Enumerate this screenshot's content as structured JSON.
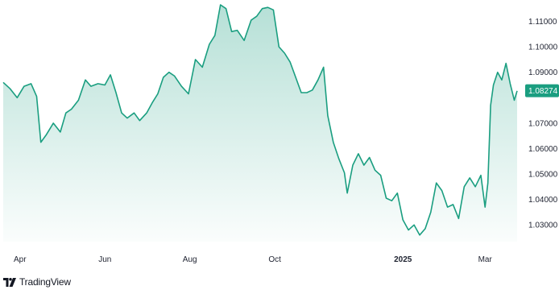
{
  "chart_data": {
    "type": "area",
    "title": "",
    "xlabel": "",
    "ylabel": "",
    "x_ticks": [
      {
        "label": "Apr",
        "date": "2024-04-01",
        "bold": false
      },
      {
        "label": "Jun",
        "date": "2024-06-01",
        "bold": false
      },
      {
        "label": "Aug",
        "date": "2024-08-01",
        "bold": false
      },
      {
        "label": "Oct",
        "date": "2024-10-01",
        "bold": false
      },
      {
        "label": "2025",
        "date": "2025-01-01",
        "bold": true
      },
      {
        "label": "Mar",
        "date": "2025-03-01",
        "bold": false
      }
    ],
    "y_ticks": [
      {
        "label": "1.11000",
        "value": 1.11
      },
      {
        "label": "1.10000",
        "value": 1.1
      },
      {
        "label": "1.09000",
        "value": 1.09
      },
      {
        "label": "1.07000",
        "value": 1.07
      },
      {
        "label": "1.06000",
        "value": 1.06
      },
      {
        "label": "1.05000",
        "value": 1.05
      },
      {
        "label": "1.04000",
        "value": 1.04
      },
      {
        "label": "1.03000",
        "value": 1.03
      }
    ],
    "ylim": [
      1.025,
      1.1165
    ],
    "xlim": [
      "2024-03-20",
      "2025-03-24"
    ],
    "last_price": {
      "label": "1.08274",
      "value": 1.08274
    },
    "line_color": "#1a9e80",
    "fill_top_color": "#1a9e80",
    "price_label_color": "#1a9e80",
    "series": [
      {
        "values": [
          [
            "2024-03-20",
            1.086
          ],
          [
            "2024-03-25",
            1.0835
          ],
          [
            "2024-03-30",
            1.08
          ],
          [
            "2024-04-04",
            1.0845
          ],
          [
            "2024-04-09",
            1.0855
          ],
          [
            "2024-04-13",
            1.0805
          ],
          [
            "2024-04-16",
            1.0625
          ],
          [
            "2024-04-20",
            1.0655
          ],
          [
            "2024-04-25",
            1.07
          ],
          [
            "2024-04-30",
            1.0665
          ],
          [
            "2024-05-04",
            1.074
          ],
          [
            "2024-05-08",
            1.0755
          ],
          [
            "2024-05-13",
            1.079
          ],
          [
            "2024-05-18",
            1.087
          ],
          [
            "2024-05-22",
            1.0845
          ],
          [
            "2024-05-27",
            1.0855
          ],
          [
            "2024-06-01",
            1.085
          ],
          [
            "2024-06-05",
            1.089
          ],
          [
            "2024-06-09",
            1.082
          ],
          [
            "2024-06-13",
            1.074
          ],
          [
            "2024-06-17",
            1.072
          ],
          [
            "2024-06-22",
            1.074
          ],
          [
            "2024-06-26",
            1.071
          ],
          [
            "2024-07-01",
            1.074
          ],
          [
            "2024-07-05",
            1.078
          ],
          [
            "2024-07-09",
            1.0815
          ],
          [
            "2024-07-13",
            1.088
          ],
          [
            "2024-07-17",
            1.09
          ],
          [
            "2024-07-21",
            1.0885
          ],
          [
            "2024-07-26",
            1.0845
          ],
          [
            "2024-07-31",
            1.0815
          ],
          [
            "2024-08-05",
            1.095
          ],
          [
            "2024-08-10",
            1.092
          ],
          [
            "2024-08-15",
            1.101
          ],
          [
            "2024-08-19",
            1.1045
          ],
          [
            "2024-08-23",
            1.1165
          ],
          [
            "2024-08-27",
            1.115
          ],
          [
            "2024-08-31",
            1.106
          ],
          [
            "2024-09-04",
            1.1065
          ],
          [
            "2024-09-09",
            1.1025
          ],
          [
            "2024-09-14",
            1.1105
          ],
          [
            "2024-09-18",
            1.112
          ],
          [
            "2024-09-22",
            1.115
          ],
          [
            "2024-09-26",
            1.1155
          ],
          [
            "2024-09-30",
            1.1145
          ],
          [
            "2024-10-04",
            1.1
          ],
          [
            "2024-10-08",
            1.0975
          ],
          [
            "2024-10-12",
            1.094
          ],
          [
            "2024-10-16",
            1.088
          ],
          [
            "2024-10-20",
            1.082
          ],
          [
            "2024-10-24",
            1.082
          ],
          [
            "2024-10-28",
            1.083
          ],
          [
            "2024-11-01",
            1.087
          ],
          [
            "2024-11-05",
            1.092
          ],
          [
            "2024-11-08",
            1.073
          ],
          [
            "2024-11-12",
            1.0625
          ],
          [
            "2024-11-16",
            1.056
          ],
          [
            "2024-11-20",
            1.0505
          ],
          [
            "2024-11-22",
            1.0425
          ],
          [
            "2024-11-26",
            1.0535
          ],
          [
            "2024-11-30",
            1.058
          ],
          [
            "2024-12-04",
            1.0535
          ],
          [
            "2024-12-08",
            1.0565
          ],
          [
            "2024-12-12",
            1.0515
          ],
          [
            "2024-12-16",
            1.0495
          ],
          [
            "2024-12-20",
            1.0405
          ],
          [
            "2024-12-24",
            1.0395
          ],
          [
            "2024-12-28",
            1.0425
          ],
          [
            "2025-01-01",
            1.032
          ],
          [
            "2025-01-05",
            1.028
          ],
          [
            "2025-01-09",
            1.03
          ],
          [
            "2025-01-13",
            1.026
          ],
          [
            "2025-01-17",
            1.0285
          ],
          [
            "2025-01-21",
            1.035
          ],
          [
            "2025-01-25",
            1.0465
          ],
          [
            "2025-01-29",
            1.0435
          ],
          [
            "2025-02-02",
            1.037
          ],
          [
            "2025-02-06",
            1.038
          ],
          [
            "2025-02-10",
            1.0325
          ],
          [
            "2025-02-14",
            1.045
          ],
          [
            "2025-02-18",
            1.0485
          ],
          [
            "2025-02-22",
            1.045
          ],
          [
            "2025-02-26",
            1.0495
          ],
          [
            "2025-03-01",
            1.037
          ],
          [
            "2025-03-03",
            1.0465
          ],
          [
            "2025-03-05",
            1.077
          ],
          [
            "2025-03-07",
            1.085
          ],
          [
            "2025-03-10",
            1.09
          ],
          [
            "2025-03-13",
            1.087
          ],
          [
            "2025-03-16",
            1.0935
          ],
          [
            "2025-03-19",
            1.0855
          ],
          [
            "2025-03-22",
            1.079
          ],
          [
            "2025-03-24",
            1.0827
          ]
        ]
      }
    ]
  },
  "branding": {
    "name": "TradingView",
    "logo_icon": "tradingview-logo-icon"
  }
}
